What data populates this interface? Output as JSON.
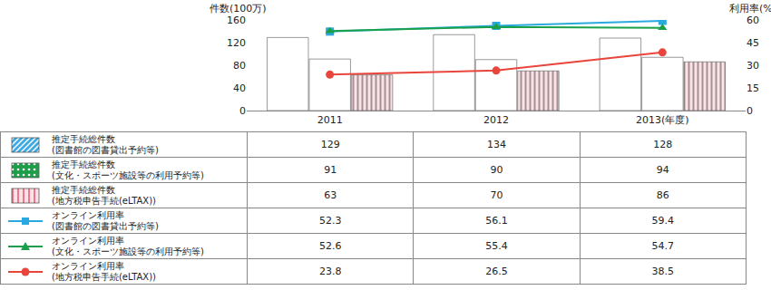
{
  "chart_data": {
    "type": "bar",
    "categories": [
      "2011",
      "2012",
      "2013(年度)"
    ],
    "ylabel": "件数(100万)",
    "y2label": "利用率(%)",
    "ylim": [
      0,
      160
    ],
    "yticks": [
      0,
      40,
      80,
      120,
      160
    ],
    "y2lim": [
      0,
      60
    ],
    "y2ticks": [
      0,
      15,
      30,
      45,
      60
    ],
    "grid": false,
    "series": [
      {
        "name": "推定手続総件数(図書館の図書貸出予約等)",
        "type": "bar",
        "color": "#3aa9e4",
        "marker": "diagonal",
        "values": [
          129,
          134,
          128
        ]
      },
      {
        "name": "推定手続総件数(文化・スポーツ施設等の利用予約等)",
        "type": "bar",
        "color": "#1e9e48",
        "marker": "dots",
        "values": [
          91,
          90,
          94
        ]
      },
      {
        "name": "推定手続総件数(地方税申告手続(eLTAX))",
        "type": "bar",
        "color": "#e8546e",
        "marker": "vertical",
        "values": [
          63,
          70,
          86
        ]
      },
      {
        "name": "オンライン利用率(図書館の図書貸出予約等)",
        "type": "line",
        "axis": "y2",
        "color": "#29a9e0",
        "marker": "square",
        "values": [
          52.3,
          56.1,
          59.4
        ]
      },
      {
        "name": "オンライン利用率(文化・スポーツ施設等の利用予約等)",
        "type": "line",
        "axis": "y2",
        "color": "#1aa04a",
        "marker": "triangle",
        "values": [
          52.6,
          55.4,
          54.7
        ]
      },
      {
        "name": "オンライン利用率(地方税申告手続(eLTAX))",
        "type": "line",
        "axis": "y2",
        "color": "#e8463c",
        "marker": "circle",
        "values": [
          23.8,
          26.5,
          38.5
        ]
      }
    ]
  }
}
